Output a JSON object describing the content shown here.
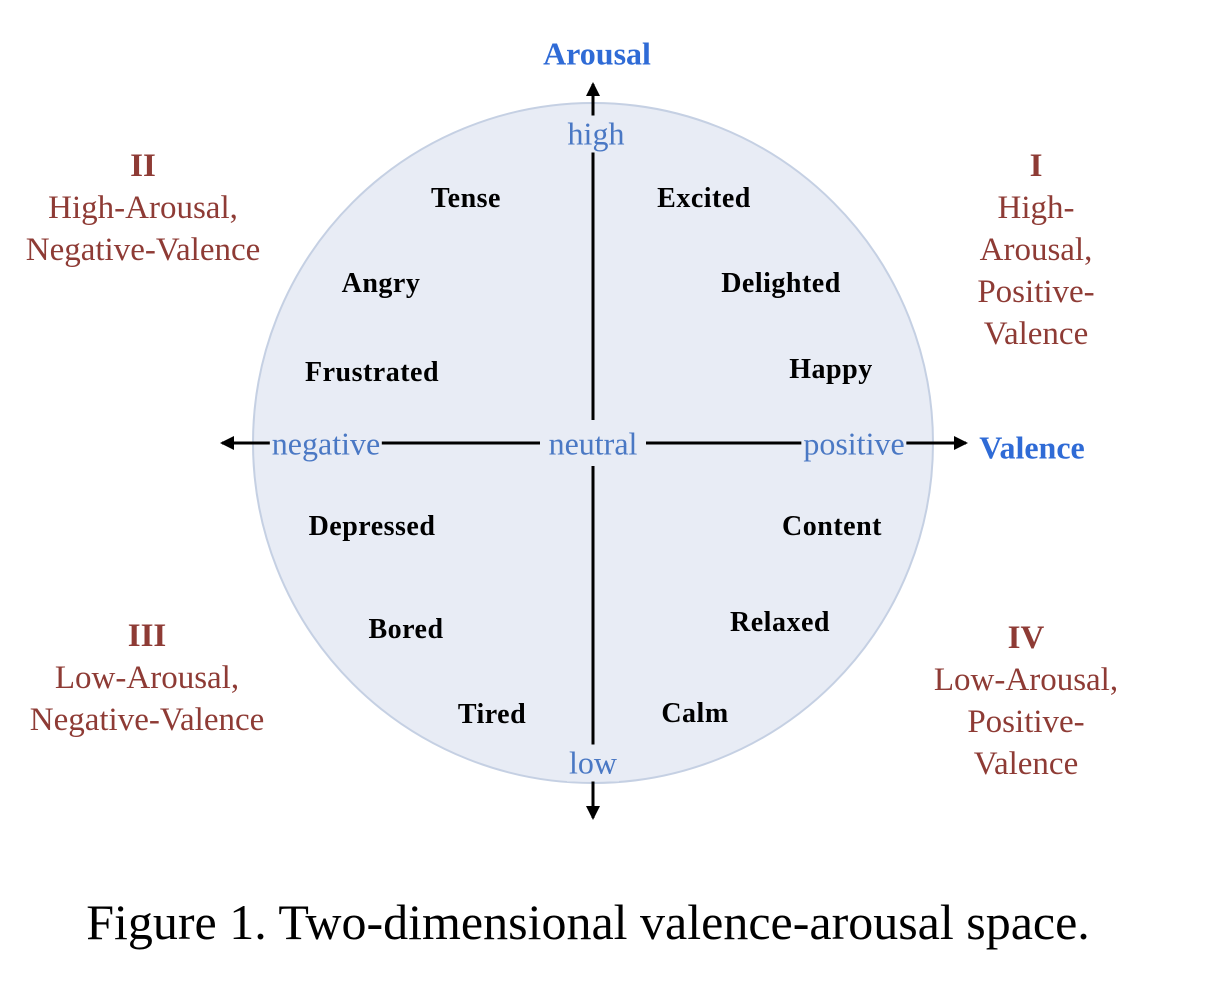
{
  "axes": {
    "vertical": {
      "title": "Arousal",
      "high": "high",
      "low": "low"
    },
    "horizontal": {
      "title": "Valence",
      "negative": "negative",
      "neutral": "neutral",
      "positive": "positive"
    }
  },
  "quadrants": [
    {
      "numeral": "I",
      "line1": "High-Arousal,",
      "line2": "Positive-Valence"
    },
    {
      "numeral": "II",
      "line1": "High-Arousal,",
      "line2": "Negative-Valence"
    },
    {
      "numeral": "III",
      "line1": "Low-Arousal,",
      "line2": "Negative-Valence"
    },
    {
      "numeral": "IV",
      "line1": "Low-Arousal,",
      "line2": "Positive-Valence"
    }
  ],
  "emotions": {
    "tense": "Tense",
    "angry": "Angry",
    "frustrated": "Frustrated",
    "excited": "Excited",
    "delighted": "Delighted",
    "happy": "Happy",
    "depressed": "Depressed",
    "bored": "Bored",
    "tired": "Tired",
    "content": "Content",
    "relaxed": "Relaxed",
    "calm": "Calm"
  },
  "caption": "Figure 1. Two-dimensional valence-arousal space.",
  "colors": {
    "circle_fill": "#e8ecf5",
    "circle_stroke": "#c5d0e3",
    "axis_title": "#2f6bd6",
    "axis_tick": "#4a78c4",
    "quadrant_text": "#8e3b35"
  }
}
